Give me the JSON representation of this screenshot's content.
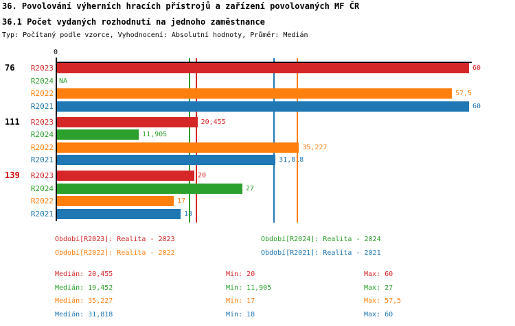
{
  "header": {
    "title": "36. Povolování výherních hracích přístrojů a zařízení povolovaných MF ČR",
    "subtitle": "36.1 Počet vydaných rozhodnutí na jednoho zaměstnance",
    "meta": "Typ: Počítaný podle vzorce, Vyhodnocení: Absolutní hodnoty, Průměr: Medián"
  },
  "colors": {
    "series": {
      "R2023": "#d62728",
      "R2024": "#2ca02c",
      "R2022": "#ff7f0e",
      "R2021": "#1f77b4"
    },
    "axis": "#000000",
    "highlight_group_label": "#d40000",
    "normal_group_label": "#000000"
  },
  "chart_data": {
    "type": "bar",
    "orientation": "horizontal",
    "title": "36.1 Počet vydaných rozhodnutí na jednoho zaměstnance",
    "axis": {
      "origin_label": "0",
      "value_min": 0,
      "value_max": 60.5,
      "grid": "median-lines-only"
    },
    "series_order": [
      "R2023",
      "R2024",
      "R2022",
      "R2021"
    ],
    "groups": [
      {
        "label": "76",
        "label_highlight": false,
        "bars": [
          {
            "series": "R2023",
            "value": 60,
            "display": "60"
          },
          {
            "series": "R2024",
            "value": null,
            "display": "NA"
          },
          {
            "series": "R2022",
            "value": 57.5,
            "display": "57,5"
          },
          {
            "series": "R2021",
            "value": 60,
            "display": "60"
          }
        ]
      },
      {
        "label": "111",
        "label_highlight": false,
        "bars": [
          {
            "series": "R2023",
            "value": 20.455,
            "display": "20,455"
          },
          {
            "series": "R2024",
            "value": 11.905,
            "display": "11,905"
          },
          {
            "series": "R2022",
            "value": 35.227,
            "display": "35,227"
          },
          {
            "series": "R2021",
            "value": 31.818,
            "display": "31,818"
          }
        ]
      },
      {
        "label": "139",
        "label_highlight": true,
        "bars": [
          {
            "series": "R2023",
            "value": 20,
            "display": "20"
          },
          {
            "series": "R2024",
            "value": 27,
            "display": "27"
          },
          {
            "series": "R2022",
            "value": 17,
            "display": "17"
          },
          {
            "series": "R2021",
            "value": 18,
            "display": "18"
          }
        ]
      }
    ],
    "median_lines": [
      {
        "series": "R2024",
        "value": 19.452
      },
      {
        "series": "R2023",
        "value": 20.455
      },
      {
        "series": "R2021",
        "value": 31.818
      },
      {
        "series": "R2022",
        "value": 35.227
      }
    ]
  },
  "legend": [
    {
      "series": "R2023",
      "label": "Období[R2023]: Realita - 2023"
    },
    {
      "series": "R2024",
      "label": "Období[R2024]: Realita - 2024"
    },
    {
      "series": "R2022",
      "label": "Období[R2022]: Realita - 2022"
    },
    {
      "series": "R2021",
      "label": "Období[R2021]: Realita - 2021"
    }
  ],
  "stats": [
    {
      "series": "R2023",
      "median": "Medián: 20,455",
      "min": "Min: 20",
      "max": "Max: 60"
    },
    {
      "series": "R2024",
      "median": "Medián: 19,452",
      "min": "Min: 11,905",
      "max": "Max: 27"
    },
    {
      "series": "R2022",
      "median": "Medián: 35,227",
      "min": "Min: 17",
      "max": "Max: 57,5"
    },
    {
      "series": "R2021",
      "median": "Medián: 31,818",
      "min": "Min: 18",
      "max": "Max: 60"
    }
  ]
}
